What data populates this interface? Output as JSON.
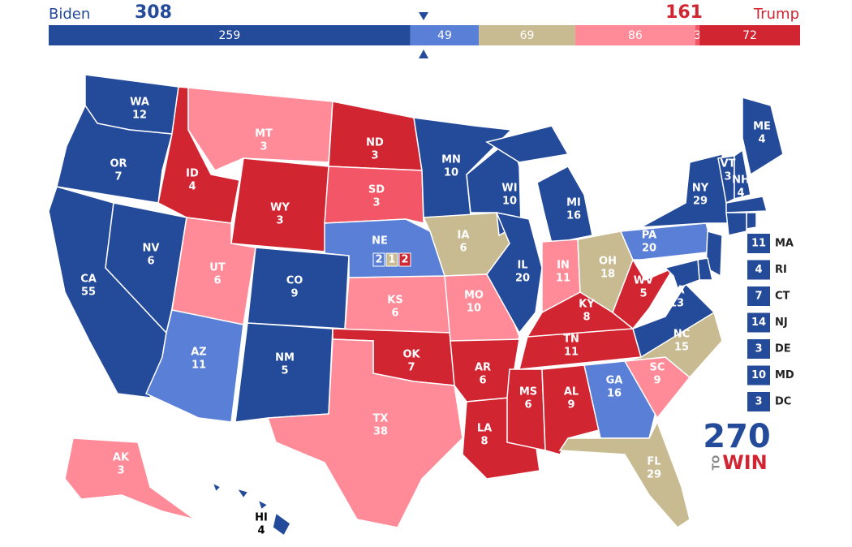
{
  "header": {
    "left_name": "Biden",
    "left_total": 308,
    "right_total": 161,
    "right_name": "Trump",
    "left_color": "#244a9a",
    "right_color": "#d22532"
  },
  "bar": {
    "segments": [
      {
        "value": 259,
        "color": "#244a9a"
      },
      {
        "value": 49,
        "color": "#5a7fd6"
      },
      {
        "value": 69,
        "color": "#c8bb91"
      },
      {
        "value": 86,
        "color": "#ff8b98"
      },
      {
        "value": 3,
        "color": "#f25667"
      },
      {
        "value": 72,
        "color": "#d22532"
      }
    ]
  },
  "states": [
    {
      "abbr": "WA",
      "votes": 12,
      "color": "#244a9a"
    },
    {
      "abbr": "OR",
      "votes": 7,
      "color": "#244a9a"
    },
    {
      "abbr": "CA",
      "votes": 55,
      "color": "#244a9a"
    },
    {
      "abbr": "NV",
      "votes": 6,
      "color": "#244a9a"
    },
    {
      "abbr": "ID",
      "votes": 4,
      "color": "#d22532"
    },
    {
      "abbr": "MT",
      "votes": 3,
      "color": "#ff8b98"
    },
    {
      "abbr": "WY",
      "votes": 3,
      "color": "#d22532"
    },
    {
      "abbr": "UT",
      "votes": 6,
      "color": "#ff8b98"
    },
    {
      "abbr": "AZ",
      "votes": 11,
      "color": "#5a7fd6"
    },
    {
      "abbr": "CO",
      "votes": 9,
      "color": "#244a9a"
    },
    {
      "abbr": "NM",
      "votes": 5,
      "color": "#244a9a"
    },
    {
      "abbr": "ND",
      "votes": 3,
      "color": "#d22532"
    },
    {
      "abbr": "SD",
      "votes": 3,
      "color": "#f25667"
    },
    {
      "abbr": "KS",
      "votes": 6,
      "color": "#ff8b98"
    },
    {
      "abbr": "OK",
      "votes": 7,
      "color": "#d22532"
    },
    {
      "abbr": "TX",
      "votes": 38,
      "color": "#ff8b98"
    },
    {
      "abbr": "MN",
      "votes": 10,
      "color": "#244a9a"
    },
    {
      "abbr": "IA",
      "votes": 6,
      "color": "#c8bb91"
    },
    {
      "abbr": "MO",
      "votes": 10,
      "color": "#ff8b98"
    },
    {
      "abbr": "AR",
      "votes": 6,
      "color": "#d22532"
    },
    {
      "abbr": "LA",
      "votes": 8,
      "color": "#d22532"
    },
    {
      "abbr": "WI",
      "votes": 10,
      "color": "#244a9a"
    },
    {
      "abbr": "IL",
      "votes": 20,
      "color": "#244a9a"
    },
    {
      "abbr": "MI",
      "votes": 16,
      "color": "#244a9a"
    },
    {
      "abbr": "IN",
      "votes": 11,
      "color": "#ff8b98"
    },
    {
      "abbr": "OH",
      "votes": 18,
      "color": "#c8bb91"
    },
    {
      "abbr": "KY",
      "votes": 8,
      "color": "#d22532"
    },
    {
      "abbr": "TN",
      "votes": 11,
      "color": "#d22532"
    },
    {
      "abbr": "MS",
      "votes": 6,
      "color": "#d22532"
    },
    {
      "abbr": "AL",
      "votes": 9,
      "color": "#d22532"
    },
    {
      "abbr": "GA",
      "votes": 16,
      "color": "#5a7fd6"
    },
    {
      "abbr": "FL",
      "votes": 29,
      "color": "#c8bb91"
    },
    {
      "abbr": "SC",
      "votes": 9,
      "color": "#ff8b98"
    },
    {
      "abbr": "NC",
      "votes": 15,
      "color": "#c8bb91"
    },
    {
      "abbr": "VA",
      "votes": 13,
      "color": "#244a9a"
    },
    {
      "abbr": "WV",
      "votes": 5,
      "color": "#d22532"
    },
    {
      "abbr": "PA",
      "votes": 20,
      "color": "#5a7fd6"
    },
    {
      "abbr": "NY",
      "votes": 29,
      "color": "#244a9a"
    },
    {
      "abbr": "ME",
      "votes": 4,
      "color": "#244a9a"
    },
    {
      "abbr": "VT",
      "votes": 3,
      "color": "#244a9a"
    },
    {
      "abbr": "NH",
      "votes": 4,
      "color": "#244a9a"
    },
    {
      "abbr": "AK",
      "votes": 3,
      "color": "#ff8b98"
    },
    {
      "abbr": "HI",
      "votes": 4,
      "color": "#244a9a"
    },
    {
      "abbr": "MA",
      "votes": 11,
      "color": "#244a9a"
    },
    {
      "abbr": "RI",
      "votes": 4,
      "color": "#244a9a"
    },
    {
      "abbr": "CT",
      "votes": 7,
      "color": "#244a9a"
    },
    {
      "abbr": "NJ",
      "votes": 14,
      "color": "#244a9a"
    },
    {
      "abbr": "DE",
      "votes": 3,
      "color": "#244a9a"
    },
    {
      "abbr": "MD",
      "votes": 10,
      "color": "#244a9a"
    },
    {
      "abbr": "DC",
      "votes": 3,
      "color": "#244a9a"
    },
    {
      "abbr": "NE",
      "color": "#5a7fd6",
      "districts": [
        {
          "votes": 2,
          "color": "#5a7fd6"
        },
        {
          "votes": 1,
          "color": "#c8bb91"
        },
        {
          "votes": 2,
          "color": "#d22532"
        }
      ]
    }
  ],
  "logo": {
    "number": "270",
    "small": "TO",
    "word": "WIN"
  }
}
